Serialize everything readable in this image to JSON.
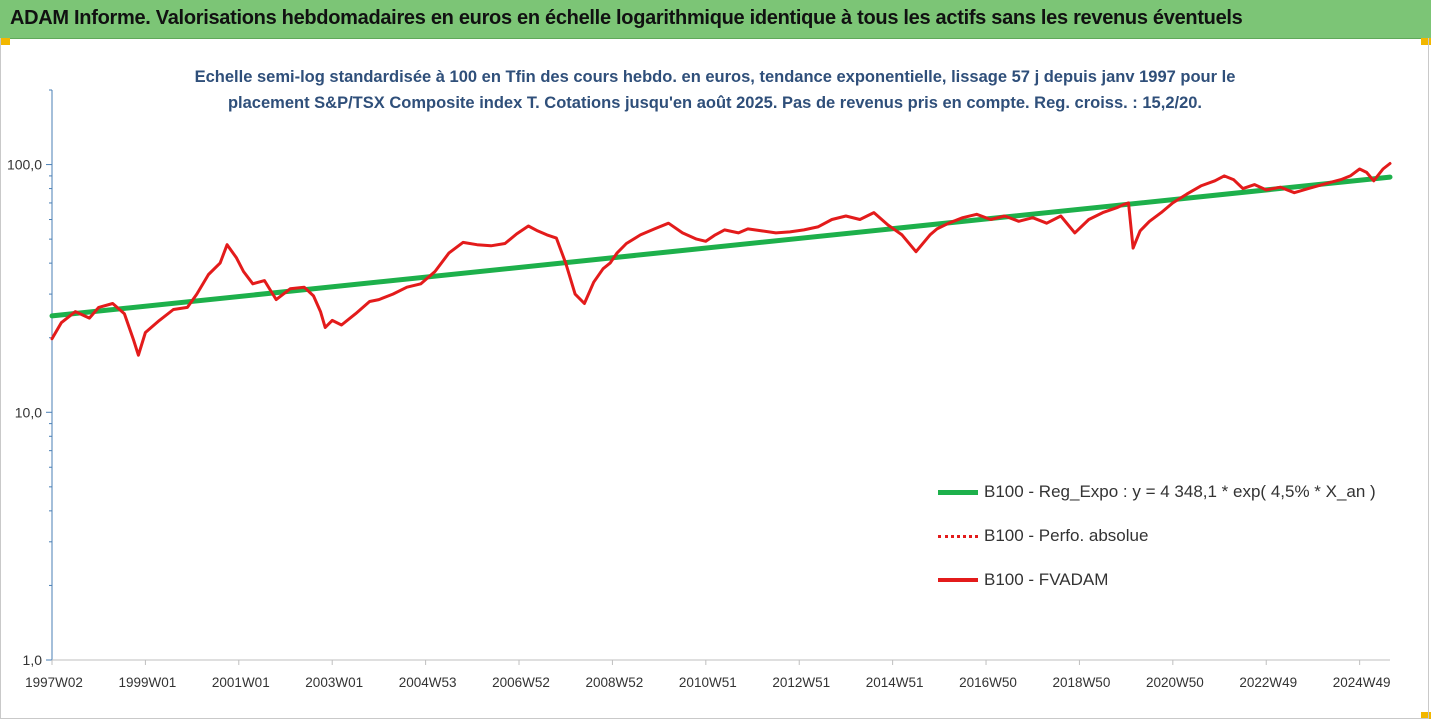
{
  "banner": {
    "title": "ADAM Informe. Valorisations hebdomadaires en euros en échelle logarithmique identique à tous les actifs sans les revenus éventuels"
  },
  "colors": {
    "banner_bg": "#7cc576",
    "regression": "#1db04b",
    "performance": "#e31b1b",
    "subtitle": "#2f4f7a"
  },
  "chart_data": {
    "type": "line",
    "title": "Echelle semi-log standardisée à 100 en Tfin des cours hebdo. en euros, tendance exponentielle, lissage 57 j depuis janv 1997 pour le placement S&P/TSX Composite index T. Cotations jusqu'en août 2025. Pas de revenus pris en compte. Reg. croiss. : 15,2/20.",
    "title_lines": [
      "Echelle semi-log standardisée à 100 en Tfin des cours hebdo. en euros, tendance exponentielle, lissage 57 j depuis janv 1997 pour le",
      "placement S&P/TSX Composite index T. Cotations jusqu'en août 2025. Pas de revenus pris en compte. Reg. croiss. : 15,2/20."
    ],
    "y_scale": "log",
    "ylim": [
      1,
      200
    ],
    "xlim": [
      1997.0,
      2025.65
    ],
    "y_ticks": [
      {
        "value": 1,
        "label": "1,0"
      },
      {
        "value": 10,
        "label": "10,0"
      },
      {
        "value": 100,
        "label": "100,0"
      }
    ],
    "x_ticks": [
      {
        "value": 1997.0,
        "label": "1997W02"
      },
      {
        "value": 1999.0,
        "label": "1999W01"
      },
      {
        "value": 2001.0,
        "label": "2001W01"
      },
      {
        "value": 2003.0,
        "label": "2003W01"
      },
      {
        "value": 2005.0,
        "label": "2004W53"
      },
      {
        "value": 2007.0,
        "label": "2006W52"
      },
      {
        "value": 2009.0,
        "label": "2008W52"
      },
      {
        "value": 2011.0,
        "label": "2010W51"
      },
      {
        "value": 2013.0,
        "label": "2012W51"
      },
      {
        "value": 2015.0,
        "label": "2014W51"
      },
      {
        "value": 2017.0,
        "label": "2016W50"
      },
      {
        "value": 2019.0,
        "label": "2018W50"
      },
      {
        "value": 2021.0,
        "label": "2020W50"
      },
      {
        "value": 2023.0,
        "label": "2022W49"
      },
      {
        "value": 2025.0,
        "label": "2024W49"
      }
    ],
    "legend_position": "right",
    "series": [
      {
        "name": "B100 - Reg_Expo : y = 4 348,1 * exp( 4,5% * X_an )",
        "style": "solid-thick",
        "color": "#1db04b",
        "x": [
          1997.0,
          2025.65
        ],
        "y": [
          24.5,
          89.0
        ]
      },
      {
        "name": "B100 - Perfo. absolue",
        "style": "dotted",
        "color": "#e31b1b",
        "x": [],
        "y": []
      },
      {
        "name": "B100 - FVADAM",
        "style": "solid",
        "color": "#e31b1b",
        "x": [
          1997.0,
          1997.2,
          1997.5,
          1997.8,
          1998.0,
          1998.3,
          1998.55,
          1998.75,
          1998.85,
          1999.0,
          1999.3,
          1999.6,
          1999.9,
          2000.1,
          2000.35,
          2000.6,
          2000.75,
          2000.95,
          2001.1,
          2001.3,
          2001.55,
          2001.8,
          2002.1,
          2002.4,
          2002.6,
          2002.75,
          2002.85,
          2003.0,
          2003.2,
          2003.5,
          2003.8,
          2004.0,
          2004.3,
          2004.6,
          2004.9,
          2005.2,
          2005.5,
          2005.8,
          2006.1,
          2006.4,
          2006.7,
          2006.95,
          2007.2,
          2007.4,
          2007.6,
          2007.8,
          2008.0,
          2008.2,
          2008.4,
          2008.6,
          2008.8,
          2008.95,
          2009.1,
          2009.3,
          2009.6,
          2009.9,
          2010.2,
          2010.5,
          2010.8,
          2011.0,
          2011.2,
          2011.4,
          2011.7,
          2011.9,
          2012.2,
          2012.5,
          2012.8,
          2013.1,
          2013.4,
          2013.7,
          2014.0,
          2014.3,
          2014.6,
          2014.9,
          2015.2,
          2015.5,
          2015.8,
          2015.95,
          2016.2,
          2016.5,
          2016.8,
          2017.1,
          2017.4,
          2017.7,
          2018.0,
          2018.3,
          2018.6,
          2018.9,
          2019.2,
          2019.5,
          2019.8,
          2019.95,
          2020.05,
          2020.15,
          2020.3,
          2020.5,
          2020.75,
          2021.0,
          2021.3,
          2021.6,
          2021.9,
          2022.1,
          2022.3,
          2022.5,
          2022.75,
          2023.0,
          2023.3,
          2023.6,
          2023.9,
          2024.1,
          2024.4,
          2024.6,
          2024.8,
          2025.0,
          2025.15,
          2025.3,
          2025.5,
          2025.65
        ],
        "y": [
          19.8,
          23.0,
          25.5,
          24.0,
          26.5,
          27.5,
          25.0,
          19.5,
          17.0,
          21.0,
          23.5,
          26.0,
          26.5,
          30.0,
          36.0,
          40.0,
          47.5,
          42.0,
          37.0,
          33.0,
          34.0,
          28.5,
          31.5,
          32.0,
          29.5,
          25.5,
          22.0,
          23.5,
          22.5,
          25.0,
          28.0,
          28.5,
          30.0,
          32.0,
          33.0,
          37.0,
          44.0,
          48.5,
          47.5,
          47.0,
          48.0,
          52.5,
          56.5,
          54.0,
          52.0,
          50.5,
          40.0,
          30.0,
          27.5,
          33.5,
          38.0,
          40.0,
          44.0,
          48.0,
          52.0,
          55.0,
          58.0,
          53.0,
          50.0,
          49.0,
          52.0,
          54.5,
          53.0,
          55.0,
          54.0,
          53.0,
          53.5,
          54.5,
          56.0,
          60.0,
          62.0,
          60.0,
          64.0,
          57.0,
          52.0,
          44.5,
          52.0,
          55.0,
          58.0,
          61.0,
          63.0,
          60.0,
          62.0,
          59.0,
          61.0,
          58.0,
          62.0,
          53.0,
          60.0,
          64.0,
          67.0,
          69.0,
          70.0,
          46.0,
          54.0,
          59.0,
          64.0,
          70.0,
          76.0,
          82.0,
          86.0,
          90.0,
          87.0,
          80.0,
          83.0,
          79.0,
          81.0,
          77.0,
          80.0,
          82.0,
          85.0,
          87.0,
          90.0,
          96.0,
          93.0,
          86.0,
          96.0,
          101.0
        ]
      }
    ]
  }
}
